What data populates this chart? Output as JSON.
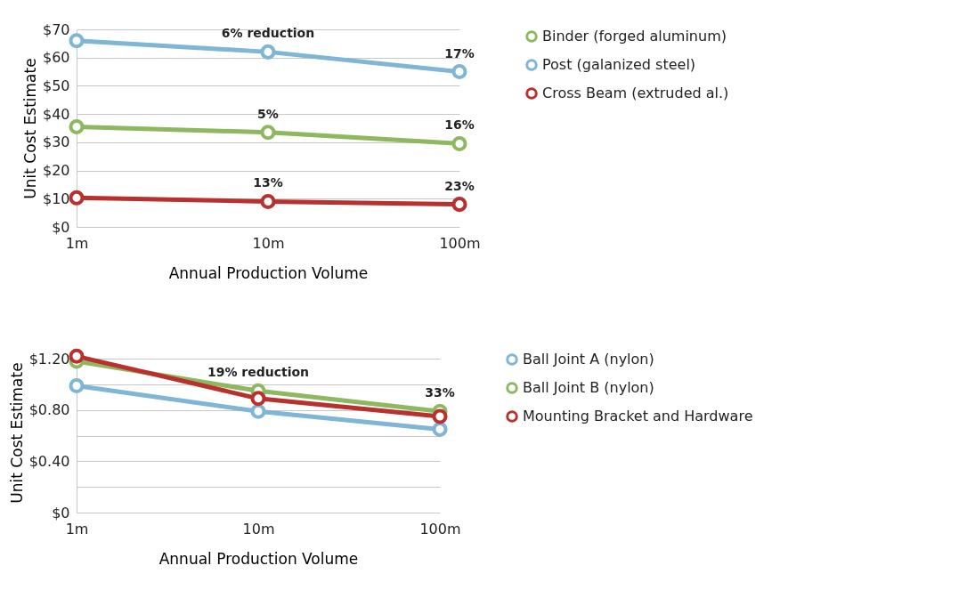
{
  "chart_data": [
    {
      "type": "line",
      "categories": [
        "1m",
        "10m",
        "100m"
      ],
      "xlabel": "Annual Production Volume",
      "ylabel": "Unit Cost Estimate",
      "ylim": [
        0,
        70
      ],
      "yticks": [
        {
          "value": 0,
          "label": "$0"
        },
        {
          "value": 10,
          "label": "$10"
        },
        {
          "value": 20,
          "label": "$20"
        },
        {
          "value": 30,
          "label": "$30"
        },
        {
          "value": 40,
          "label": "$40"
        },
        {
          "value": 50,
          "label": "$50"
        },
        {
          "value": 60,
          "label": "$60"
        },
        {
          "value": 70,
          "label": "$70"
        }
      ],
      "grid": "y",
      "legend": "right",
      "marker": "circle",
      "series": [
        {
          "name": "Binder (forged aluminum)",
          "color": "#8db860",
          "values": [
            35.5,
            33.5,
            29.5
          ]
        },
        {
          "name": "Post (galanized steel)",
          "color": "#7fb5d5",
          "values": [
            66,
            62,
            55
          ]
        },
        {
          "name": "Cross Beam (extruded al.)",
          "color": "#b8312f",
          "values": [
            10.3,
            9,
            8
          ]
        }
      ],
      "annotations": [
        {
          "text": "6% reduction",
          "x": "10m",
          "y": 62
        },
        {
          "text": "17%",
          "x": "100m",
          "y": 55
        },
        {
          "text": "5%",
          "x": "10m",
          "y": 33.5
        },
        {
          "text": "16%",
          "x": "100m",
          "y": 29.5
        },
        {
          "text": "13%",
          "x": "10m",
          "y": 9
        },
        {
          "text": "23%",
          "x": "100m",
          "y": 8
        }
      ]
    },
    {
      "type": "line",
      "categories": [
        "1m",
        "10m",
        "100m"
      ],
      "xlabel": "Annual Production Volume",
      "ylabel": "Unit Cost Estimate",
      "ylim": [
        0,
        1.25
      ],
      "yticks": [
        {
          "value": 0,
          "label": "$0"
        },
        {
          "value": 0.2,
          "label": null
        },
        {
          "value": 0.4,
          "label": "$0.40"
        },
        {
          "value": 0.6,
          "label": null
        },
        {
          "value": 0.8,
          "label": "$0.80"
        },
        {
          "value": 1.0,
          "label": null
        },
        {
          "value": 1.2,
          "label": "$1.20"
        }
      ],
      "grid": "y",
      "legend": "right",
      "marker": "circle",
      "series": [
        {
          "name": "Ball Joint A (nylon)",
          "color": "#7fb5d5",
          "values": [
            0.99,
            0.79,
            0.65
          ]
        },
        {
          "name": "Ball Joint B (nylon)",
          "color": "#8db860",
          "values": [
            1.18,
            0.95,
            0.79
          ]
        },
        {
          "name": "Mounting Bracket and Hardware",
          "color": "#b8312f",
          "values": [
            1.22,
            0.89,
            0.75
          ]
        }
      ],
      "annotations": [
        {
          "text": "19% reduction",
          "x": "10m",
          "y": 0.95
        },
        {
          "text": "33%",
          "x": "100m",
          "y": 0.79
        }
      ]
    }
  ]
}
